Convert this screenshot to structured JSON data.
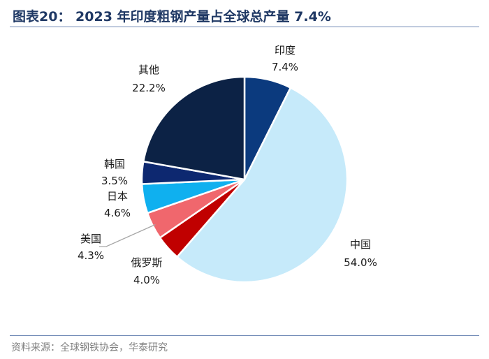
{
  "header": {
    "title": "图表20：  2023 年印度粗钢产量占全球总产量 7.4%"
  },
  "footer": {
    "source": "资料来源：全球钢铁协会，华泰研究"
  },
  "chart_data": {
    "type": "pie",
    "title": "2023 年印度粗钢产量占全球总产量 7.4%",
    "unit": "%",
    "start": "12 o'clock",
    "direction": "clockwise",
    "slices": [
      {
        "label": "印度",
        "value": 7.4,
        "display": "7.4%",
        "color": "#0b3a7e"
      },
      {
        "label": "中国",
        "value": 54.0,
        "display": "54.0%",
        "color": "#c6eafa"
      },
      {
        "label": "俄罗斯",
        "value": 4.0,
        "display": "4.0%",
        "color": "#c00000"
      },
      {
        "label": "美国",
        "value": 4.3,
        "display": "4.3%",
        "color": "#f0676d"
      },
      {
        "label": "日本",
        "value": 4.6,
        "display": "4.6%",
        "color": "#0fb0ef"
      },
      {
        "label": "韩国",
        "value": 3.5,
        "display": "3.5%",
        "color": "#0d2870"
      },
      {
        "label": "其他",
        "value": 22.2,
        "display": "22.2%",
        "color": "#0c2245"
      }
    ]
  }
}
